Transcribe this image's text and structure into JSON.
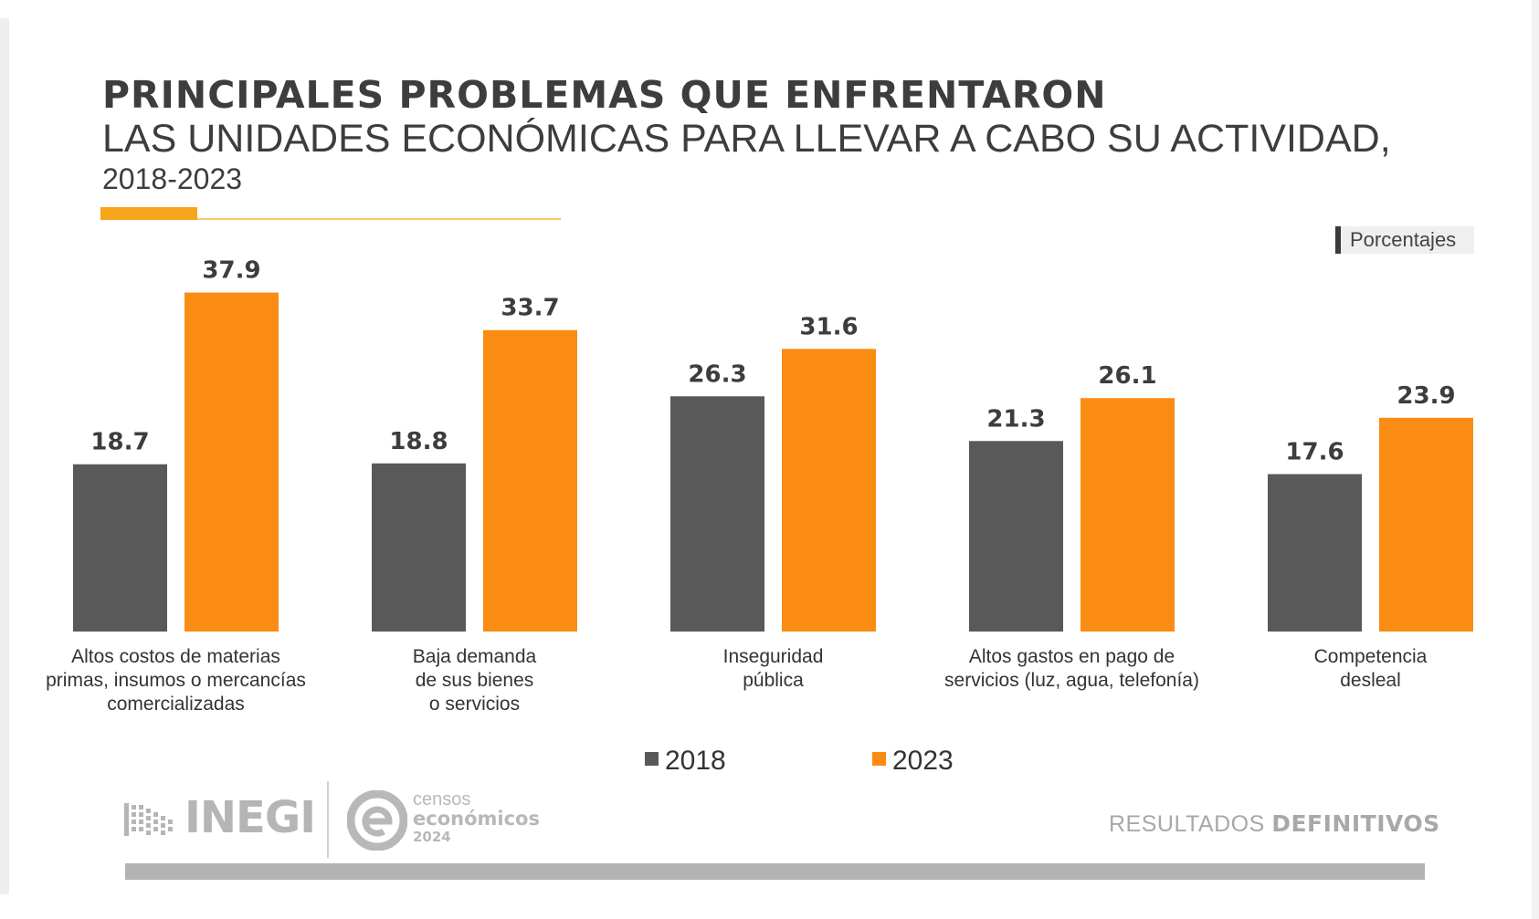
{
  "header": {
    "title_line1": "PRINCIPALES PROBLEMAS QUE ENFRENTARON",
    "title_line2": "LAS UNIDADES ECONÓMICAS PARA LLEVAR A CABO SU ACTIVIDAD,",
    "title_line3": "2018-2023"
  },
  "units_label": "Porcentajes",
  "chart_data": {
    "type": "bar",
    "title": "PRINCIPALES PROBLEMAS QUE ENFRENTARON LAS UNIDADES ECONÓMICAS PARA LLEVAR A CABO SU ACTIVIDAD, 2018-2023",
    "xlabel": "",
    "ylabel": "Porcentajes",
    "ylim": [
      0,
      40
    ],
    "grid": false,
    "legend_position": "bottom",
    "categories": [
      [
        "Altos costos de materias",
        "primas, insumos o mercancías",
        "comercializadas"
      ],
      [
        "Baja demanda",
        "de sus bienes",
        "o servicios"
      ],
      [
        "Inseguridad",
        "pública"
      ],
      [
        "Altos gastos en pago de",
        "servicios (luz, agua, telefonía)"
      ],
      [
        "Competencia",
        "desleal"
      ]
    ],
    "series": [
      {
        "name": "2018",
        "color": "#595959",
        "values": [
          18.7,
          18.8,
          26.3,
          21.3,
          17.6
        ],
        "labels": [
          "18.7",
          "18.8",
          "26.3",
          "21.3",
          "17.6"
        ]
      },
      {
        "name": "2023",
        "color": "#fb8c13",
        "values": [
          37.9,
          33.7,
          31.6,
          26.1,
          23.9
        ],
        "labels": [
          "37.9",
          "33.7",
          "31.6",
          "26.1",
          "23.9"
        ]
      }
    ]
  },
  "footer": {
    "inegi_logo_text": "INEGI",
    "censos_line1": "censos",
    "censos_line2": "económicos",
    "censos_line3": "2024",
    "results_light": "RESULTADOS ",
    "results_bold": "DEFINITIVOS"
  }
}
